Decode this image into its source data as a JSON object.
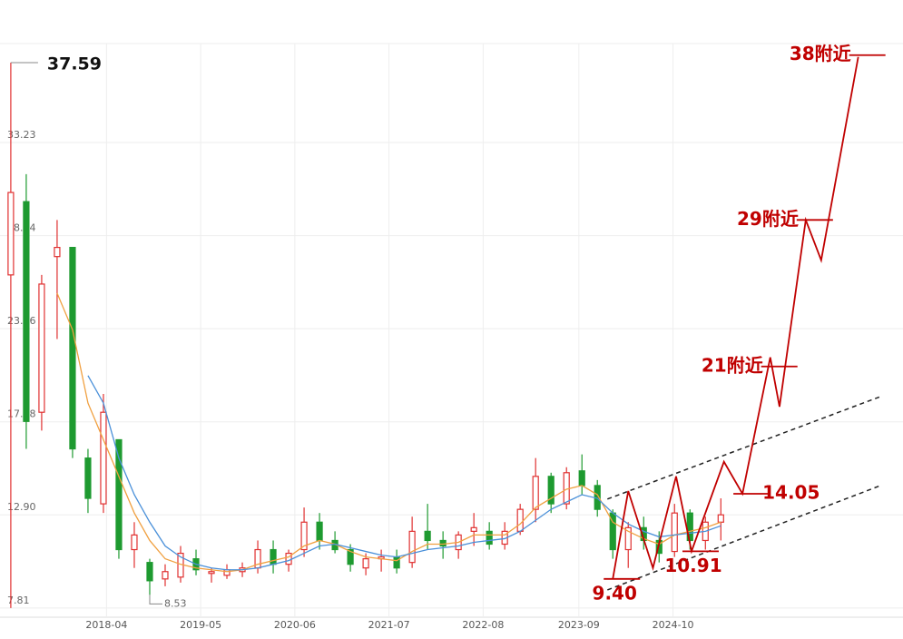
{
  "chart_data": {
    "type": "candlestick",
    "xlim": [
      -0.7,
      57.8
    ],
    "ylim": [
      7.31,
      38.63
    ],
    "yticks": [
      {
        "value": 33.23,
        "label": "33.23"
      },
      28.14,
      23.06,
      17.98,
      {
        "value": 12.9,
        "label": "12.90"
      },
      7.81
    ],
    "xticks": [
      {
        "value": 6.2,
        "label": "2018-04"
      },
      {
        "value": 12.3,
        "label": "2019-05"
      },
      {
        "value": 18.4,
        "label": "2020-06"
      },
      {
        "value": 24.5,
        "label": "2021-07"
      },
      {
        "value": 30.6,
        "label": "2022-08"
      },
      {
        "value": 36.8,
        "label": "2023-09"
      },
      {
        "value": 42.9,
        "label": "2024-10"
      }
    ],
    "grid": true,
    "up_color": "#e03030",
    "down_color": "#1e9a30",
    "candles": [
      [
        26.0,
        37.59,
        7.81,
        30.5
      ],
      [
        30.0,
        31.5,
        16.5,
        18.0
      ],
      [
        18.5,
        26.0,
        17.5,
        25.5
      ],
      [
        27.0,
        29.0,
        22.5,
        27.5
      ],
      [
        27.5,
        27.5,
        16.0,
        16.5
      ],
      [
        16.0,
        16.5,
        13.0,
        13.8
      ],
      [
        13.5,
        19.5,
        13.0,
        18.5
      ],
      [
        17.0,
        17.0,
        10.5,
        11.0
      ],
      [
        11.0,
        12.5,
        10.0,
        11.8
      ],
      [
        10.3,
        10.5,
        8.53,
        9.3
      ],
      [
        9.4,
        10.2,
        9.0,
        9.8
      ],
      [
        9.5,
        11.2,
        9.2,
        10.8
      ],
      [
        10.5,
        11.0,
        9.6,
        9.9
      ],
      [
        9.7,
        10.0,
        9.2,
        9.8
      ],
      [
        9.6,
        10.2,
        9.4,
        9.9
      ],
      [
        9.8,
        10.3,
        9.5,
        10.0
      ],
      [
        10.0,
        11.5,
        9.7,
        11.0
      ],
      [
        11.0,
        11.5,
        9.7,
        10.2
      ],
      [
        10.2,
        11.0,
        9.8,
        10.8
      ],
      [
        11.0,
        13.3,
        10.6,
        12.5
      ],
      [
        12.5,
        13.0,
        11.0,
        11.5
      ],
      [
        11.5,
        12.0,
        10.8,
        11.0
      ],
      [
        11.0,
        11.3,
        9.8,
        10.2
      ],
      [
        10.0,
        10.8,
        9.6,
        10.5
      ],
      [
        10.5,
        11.0,
        9.8,
        10.6
      ],
      [
        10.6,
        11.0,
        9.7,
        10.0
      ],
      [
        10.3,
        12.8,
        10.0,
        12.0
      ],
      [
        12.0,
        13.5,
        11.0,
        11.5
      ],
      [
        11.5,
        12.0,
        10.5,
        11.2
      ],
      [
        11.0,
        12.0,
        10.5,
        11.8
      ],
      [
        12.0,
        13.0,
        11.2,
        12.2
      ],
      [
        12.0,
        12.5,
        11.0,
        11.3
      ],
      [
        11.3,
        12.5,
        11.0,
        12.0
      ],
      [
        12.0,
        13.5,
        11.8,
        13.2
      ],
      [
        13.2,
        16.0,
        12.5,
        15.0
      ],
      [
        15.0,
        15.2,
        13.0,
        13.5
      ],
      [
        13.5,
        15.5,
        13.2,
        15.2
      ],
      [
        15.3,
        16.2,
        14.0,
        14.5
      ],
      [
        14.5,
        14.8,
        12.8,
        13.2
      ],
      [
        13.0,
        13.2,
        10.5,
        11.0
      ],
      [
        11.0,
        12.5,
        10.0,
        12.2
      ],
      [
        12.2,
        12.8,
        11.0,
        11.5
      ],
      [
        11.5,
        12.0,
        10.3,
        10.8
      ],
      [
        10.9,
        13.5,
        10.6,
        13.0
      ],
      [
        13.0,
        13.2,
        11.0,
        11.5
      ],
      [
        11.5,
        12.8,
        11.0,
        12.5
      ],
      [
        12.5,
        13.8,
        11.5,
        12.9
      ]
    ],
    "series": [
      {
        "color": "#f0a040",
        "values": [
          null,
          null,
          null,
          25,
          23,
          19,
          17,
          15,
          13,
          11.5,
          10.5,
          10.2,
          10.0,
          9.9,
          9.8,
          9.9,
          10.2,
          10.4,
          10.6,
          11.2,
          11.5,
          11.3,
          10.9,
          10.6,
          10.5,
          10.4,
          10.9,
          11.3,
          11.3,
          11.4,
          11.8,
          11.8,
          11.8,
          12.4,
          13.3,
          13.8,
          14.3,
          14.5,
          14.0,
          12.5,
          12.0,
          11.6,
          11.3,
          11.8,
          12.0,
          12.2,
          12.5
        ]
      },
      {
        "color": "#4a90d9",
        "values": [
          null,
          null,
          null,
          null,
          null,
          20.5,
          19,
          16,
          14,
          12.5,
          11.2,
          10.6,
          10.2,
          10.0,
          9.9,
          9.9,
          10.0,
          10.2,
          10.4,
          10.8,
          11.2,
          11.3,
          11.1,
          10.9,
          10.7,
          10.6,
          10.8,
          11.0,
          11.1,
          11.2,
          11.4,
          11.5,
          11.6,
          12.0,
          12.6,
          13.2,
          13.6,
          14.0,
          13.8,
          13.0,
          12.4,
          12.0,
          11.7,
          11.8,
          11.9,
          12.0,
          12.3
        ]
      }
    ],
    "projection": {
      "color": "#c00000",
      "x": [
        39,
        40,
        41.6,
        43.1,
        44.1,
        46.2,
        47.4,
        49.2,
        49.8,
        51.5,
        52.5,
        54.9
      ],
      "values": [
        9.4,
        14.2,
        10.0,
        15.0,
        10.91,
        15.8,
        14.05,
        21.5,
        18.8,
        29.0,
        26.8,
        37.9
      ]
    },
    "channel": [
      {
        "x": [
          38.65,
          56.35
        ],
        "values": [
          13.76,
          19.36
        ]
      },
      {
        "x": [
          38.65,
          56.35
        ],
        "values": [
          8.8,
          14.5
        ]
      }
    ],
    "max_label": {
      "x": 0,
      "value": 37.59,
      "label": "37.59"
    },
    "min_label": {
      "x": 9,
      "value": 8.53,
      "label": "8.53"
    },
    "annotations": [
      {
        "x": 39,
        "value": 9.4,
        "label": "9.40"
      },
      {
        "x": 44.1,
        "value": 10.91,
        "label": "10.91"
      },
      {
        "x": 47.4,
        "value": 14.05,
        "label": "14.05"
      },
      {
        "x": 49.2,
        "value": 21,
        "label": "21附近"
      },
      {
        "x": 51.5,
        "value": 29,
        "label": "29附近"
      },
      {
        "x": 54.9,
        "value": 38,
        "label": "38附近"
      }
    ]
  }
}
